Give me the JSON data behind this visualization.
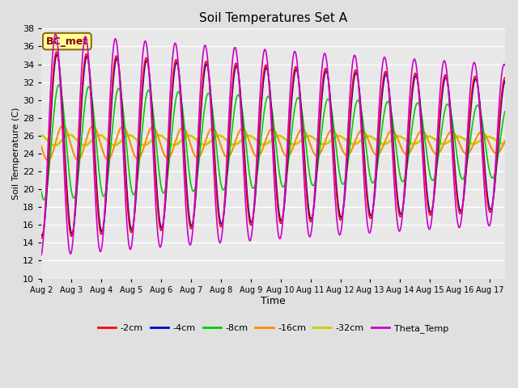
{
  "title": "Soil Temperatures Set A",
  "xlabel": "Time",
  "ylabel": "Soil Temperature (C)",
  "ylim": [
    10,
    38
  ],
  "annotation_text": "BC_met",
  "annotation_color": "#8B0000",
  "annotation_bg": "#FFFF99",
  "annotation_border": "#8B6914",
  "colors": {
    "-2cm": "#FF0000",
    "-4cm": "#0000CC",
    "-8cm": "#00CC00",
    "-16cm": "#FF8C00",
    "-32cm": "#CCCC00",
    "Theta_Temp": "#CC00CC"
  },
  "lws": {
    "-2cm": 1.2,
    "-4cm": 1.2,
    "-8cm": 1.2,
    "-16cm": 1.5,
    "-32cm": 2.0,
    "Theta_Temp": 1.2
  },
  "yticks": [
    10,
    12,
    14,
    16,
    18,
    20,
    22,
    24,
    26,
    28,
    30,
    32,
    34,
    36,
    38
  ],
  "n_days": 15.5,
  "title_fontsize": 11,
  "figsize": [
    6.4,
    4.8
  ],
  "dpi": 100
}
